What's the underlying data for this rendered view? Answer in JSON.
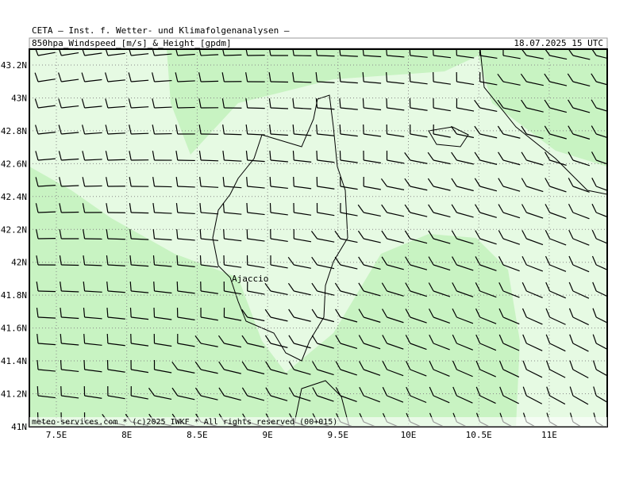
{
  "header": {
    "line1": "CETA – Inst. f. Wetter- und Klimafolgenanalysen –",
    "left": "850hpa_Windspeed_[m/s]_&_Height_[gpdm]",
    "right": "18.07.2025 15 UTC"
  },
  "axes": {
    "lat_labels": [
      "43.2N",
      "43N",
      "42.8N",
      "42.6N",
      "42.4N",
      "42.2N",
      "42N",
      "41.8N",
      "41.6N",
      "41.4N",
      "41.2N",
      "41N"
    ],
    "lon_labels": [
      "7.5E",
      "8E",
      "8.5E",
      "9E",
      "9.5E",
      "10E",
      "10.5E",
      "11E"
    ]
  },
  "places": [
    {
      "label": "Ajaccio"
    }
  ],
  "footer": "meteo-services.com * (c)2025 IWKF * All rights reserved (00+015)"
}
